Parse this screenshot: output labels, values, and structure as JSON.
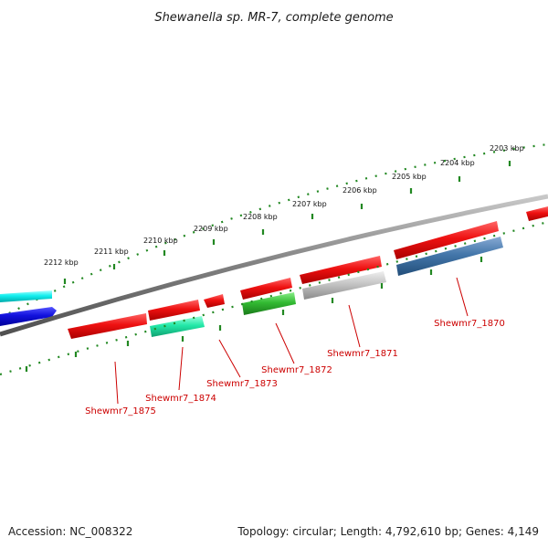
{
  "title": "Shewanella sp. MR-7, complete genome",
  "scale_labels": [
    {
      "value": 2212,
      "text": "2212 kbp"
    },
    {
      "value": 2211,
      "text": "2211 kbp"
    },
    {
      "value": 2210,
      "text": "2210 kbp"
    },
    {
      "value": 2209,
      "text": "2209 kbp"
    },
    {
      "value": 2208,
      "text": "2208 kbp"
    },
    {
      "value": 2207,
      "text": "2207 kbp"
    },
    {
      "value": 2206,
      "text": "2206 kbp"
    },
    {
      "value": 2205,
      "text": "2205 kbp"
    },
    {
      "value": 2204,
      "text": "2204 kbp"
    },
    {
      "value": 2203,
      "text": "2203 kbp"
    }
  ],
  "gene_labels": [
    {
      "text": "Shewmr7_1875",
      "color": "#cc0000"
    },
    {
      "text": "Shewmr7_1874",
      "color": "#cc0000"
    },
    {
      "text": "Shewmr7_1873",
      "color": "#cc0000"
    },
    {
      "text": "Shewmr7_1872",
      "color": "#cc0000"
    },
    {
      "text": "Shewmr7_1871",
      "color": "#cc0000"
    },
    {
      "text": "Shewmr7_1870",
      "color": "#cc0000"
    }
  ],
  "feature_colors": {
    "red": "#ee1111",
    "cyan": "#11eeee",
    "blue": "#1111dd",
    "teal": "#22e8a8",
    "green": "#33bb33",
    "gray": "#b8b8b8",
    "steel_blue": "#4477aa",
    "backbone": "#808080",
    "tick": "#228822"
  },
  "footer": {
    "accession": "Accession: NC_008322",
    "summary": "Topology: circular; Length: 4,792,610 bp; Genes: 4,149"
  }
}
